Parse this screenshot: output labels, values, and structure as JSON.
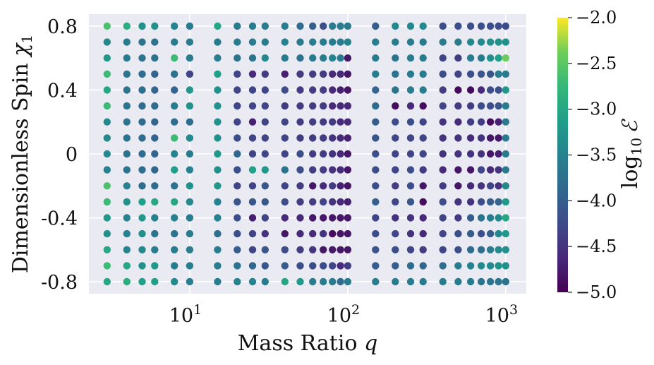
{
  "chart_data": {
    "type": "scatter",
    "xlabel": "Mass Ratio q",
    "ylabel": "Dimensionless Spin χ1",
    "xscale": "log",
    "xlim": [
      2.3,
      1350
    ],
    "ylim": [
      -0.875,
      0.875
    ],
    "x_ticks": [
      {
        "value": 10,
        "base": "10",
        "exp": "1"
      },
      {
        "value": 100,
        "base": "10",
        "exp": "2"
      },
      {
        "value": 1000,
        "base": "10",
        "exp": "3"
      }
    ],
    "y_ticks": [
      {
        "value": 0.8,
        "label": "0.8"
      },
      {
        "value": 0.4,
        "label": "0.4"
      },
      {
        "value": 0.0,
        "label": "0"
      },
      {
        "value": -0.4,
        "label": "-0.4"
      },
      {
        "value": -0.8,
        "label": "-0.8"
      }
    ],
    "colorbar": {
      "label": "log10 ℰ",
      "label_base": "log",
      "label_sub": "10",
      "label_symbol": "ℰ",
      "min": -5.0,
      "max": -2.0,
      "ticks": [
        "−2.0",
        "−2.5",
        "−3.0",
        "−3.5",
        "−4.0",
        "−4.5",
        "−5.0"
      ],
      "colormap": "viridis"
    },
    "q_values": [
      3,
      4,
      5,
      6,
      8,
      10,
      15,
      20,
      25,
      30,
      40,
      50,
      60,
      70,
      80,
      90,
      100,
      150,
      200,
      250,
      300,
      400,
      500,
      600,
      700,
      800,
      900,
      1000
    ],
    "chi_values": [
      0.8,
      0.7,
      0.6,
      0.5,
      0.4,
      0.3,
      0.2,
      0.1,
      0.0,
      -0.1,
      -0.2,
      -0.3,
      -0.4,
      -0.5,
      -0.6,
      -0.7,
      -0.8
    ],
    "log10_error_matrix": [
      [
        -2.6,
        -2.9,
        -3.3,
        -3.3,
        -3.5,
        -3.6,
        -3.0,
        -3.6,
        -3.6,
        -3.6,
        -3.6,
        -3.8,
        -4.0,
        -4.2,
        -3.6,
        -3.6,
        -3.6,
        -4.0,
        -3.4,
        -3.4,
        -3.4,
        -4.2,
        -4.2,
        -4.2,
        -4.2,
        -4.2,
        -4.2,
        -4.2
      ],
      [
        -3.4,
        -3.6,
        -3.7,
        -3.7,
        -3.6,
        -3.6,
        -3.6,
        -3.6,
        -3.6,
        -3.6,
        -3.5,
        -3.6,
        -3.6,
        -3.6,
        -3.6,
        -3.6,
        -3.5,
        -3.6,
        -3.6,
        -3.6,
        -3.6,
        -3.6,
        -3.6,
        -3.4,
        -3.4,
        -3.3,
        -3.3,
        -3.3
      ],
      [
        -3.2,
        -3.6,
        -3.7,
        -3.7,
        -2.7,
        -3.6,
        -3.6,
        -3.7,
        -3.7,
        -3.4,
        -3.6,
        -3.7,
        -3.6,
        -3.6,
        -3.5,
        -3.6,
        -4.8,
        -3.6,
        -3.7,
        -3.6,
        -3.6,
        -4.3,
        -4.4,
        -3.6,
        -3.6,
        -3.3,
        -3.1,
        -2.4
      ],
      [
        -2.7,
        -3.7,
        -3.8,
        -3.9,
        -3.7,
        -4.3,
        -3.1,
        -4.3,
        -4.6,
        -4.4,
        -4.7,
        -4.4,
        -4.4,
        -4.4,
        -4.6,
        -4.6,
        -4.8,
        -3.6,
        -3.7,
        -3.6,
        -3.6,
        -4.2,
        -4.3,
        -4.2,
        -4.1,
        -4.1,
        -3.6,
        -3.6
      ],
      [
        -3.0,
        -3.7,
        -3.8,
        -3.9,
        -3.9,
        -3.2,
        -3.3,
        -4.3,
        -4.3,
        -4.3,
        -4.2,
        -4.4,
        -4.4,
        -4.4,
        -4.6,
        -4.7,
        -4.8,
        -3.9,
        -3.7,
        -3.6,
        -3.6,
        -4.4,
        -4.9,
        -4.9,
        -4.6,
        -4.2,
        -4.2,
        -3.2
      ],
      [
        -2.7,
        -3.7,
        -3.8,
        -3.8,
        -3.6,
        -3.3,
        -3.3,
        -4.3,
        -4.3,
        -4.3,
        -4.4,
        -4.4,
        -4.4,
        -4.4,
        -4.6,
        -4.6,
        -4.6,
        -3.8,
        -4.9,
        -4.6,
        -4.9,
        -4.3,
        -4.4,
        -4.4,
        -4.2,
        -4.2,
        -4.1,
        -3.6
      ],
      [
        -3.4,
        -3.7,
        -3.8,
        -3.9,
        -3.8,
        -3.8,
        -3.3,
        -4.3,
        -4.7,
        -4.3,
        -4.3,
        -4.4,
        -4.4,
        -4.4,
        -4.4,
        -4.6,
        -4.6,
        -4.0,
        -4.2,
        -4.2,
        -4.3,
        -4.5,
        -4.6,
        -4.4,
        -4.4,
        -4.9,
        -4.7,
        -3.6
      ],
      [
        -3.4,
        -3.7,
        -3.8,
        -3.9,
        -2.7,
        -3.4,
        -3.3,
        -4.2,
        -4.3,
        -4.3,
        -4.3,
        -4.4,
        -4.4,
        -4.4,
        -4.5,
        -4.6,
        -4.7,
        -4.1,
        -4.3,
        -4.3,
        -4.3,
        -4.5,
        -4.5,
        -4.6,
        -4.5,
        -4.8,
        -4.8,
        -3.6
      ],
      [
        -3.4,
        -3.7,
        -3.8,
        -3.9,
        -3.5,
        -3.6,
        -3.2,
        -3.9,
        -4.3,
        -4.3,
        -4.3,
        -4.2,
        -4.4,
        -4.4,
        -4.5,
        -4.6,
        -4.8,
        -4.2,
        -4.3,
        -4.3,
        -4.3,
        -4.5,
        -4.5,
        -4.5,
        -4.5,
        -4.8,
        -4.7,
        -3.6
      ],
      [
        -3.5,
        -3.7,
        -3.8,
        -3.9,
        -3.1,
        -3.5,
        -3.3,
        -4.2,
        -3.1,
        -3.2,
        -3.7,
        -4.2,
        -4.4,
        -4.4,
        -4.5,
        -4.6,
        -4.8,
        -4.2,
        -4.3,
        -4.2,
        -4.4,
        -4.6,
        -4.8,
        -4.8,
        -4.3,
        -4.6,
        -4.5,
        -3.6
      ],
      [
        -2.6,
        -3.5,
        -3.8,
        -3.8,
        -3.7,
        -3.3,
        -3.2,
        -4.3,
        -4.3,
        -4.1,
        -4.3,
        -4.4,
        -4.8,
        -4.6,
        -4.4,
        -4.7,
        -4.8,
        -4.2,
        -4.4,
        -4.2,
        -4.8,
        -4.4,
        -4.8,
        -4.6,
        -4.5,
        -4.3,
        -4.5,
        -3.4
      ],
      [
        -2.7,
        -3.3,
        -3.1,
        -3.0,
        -3.0,
        -3.4,
        -3.5,
        -4.1,
        -4.1,
        -4.1,
        -4.2,
        -4.4,
        -4.4,
        -4.3,
        -4.5,
        -4.6,
        -4.7,
        -4.0,
        -4.3,
        -4.1,
        -4.9,
        -4.2,
        -4.5,
        -4.5,
        -4.2,
        -4.0,
        -3.9,
        -3.2
      ],
      [
        -3.2,
        -3.5,
        -3.2,
        -3.5,
        -3.5,
        -3.6,
        -3.5,
        -4.2,
        -4.7,
        -4.3,
        -4.6,
        -4.6,
        -4.8,
        -4.8,
        -4.8,
        -4.8,
        -4.8,
        -4.3,
        -4.5,
        -4.5,
        -4.6,
        -4.3,
        -4.4,
        -4.0,
        -3.7,
        -3.6,
        -3.4,
        -3.0
      ],
      [
        -3.3,
        -3.5,
        -3.3,
        -3.7,
        -3.7,
        -3.6,
        -3.8,
        -4.2,
        -4.3,
        -4.5,
        -4.8,
        -4.6,
        -4.6,
        -4.5,
        -4.9,
        -4.8,
        -4.8,
        -4.2,
        -4.3,
        -4.5,
        -4.6,
        -4.3,
        -4.2,
        -4.0,
        -4.2,
        -4.0,
        -3.4,
        -3.2
      ],
      [
        -3.0,
        -3.5,
        -3.4,
        -3.6,
        -3.6,
        -3.6,
        -3.6,
        -4.0,
        -4.3,
        -4.1,
        -4.2,
        -4.4,
        -4.5,
        -4.8,
        -4.8,
        -4.8,
        -4.8,
        -4.1,
        -4.2,
        -4.3,
        -4.4,
        -4.3,
        -4.2,
        -3.8,
        -3.8,
        -3.6,
        -3.4,
        -3.3
      ],
      [
        -2.7,
        -3.0,
        -3.3,
        -3.2,
        -3.6,
        -3.6,
        -3.6,
        -3.7,
        -3.9,
        -4.1,
        -4.0,
        -4.2,
        -4.2,
        -4.2,
        -4.3,
        -4.6,
        -4.4,
        -4.0,
        -4.0,
        -3.8,
        -3.9,
        -3.8,
        -3.6,
        -3.5,
        -3.4,
        -3.4,
        -3.3,
        -3.3
      ],
      [
        -3.0,
        -2.9,
        -3.1,
        -3.1,
        -3.4,
        -3.6,
        -3.6,
        -3.5,
        -3.5,
        -3.6,
        -3.0,
        -3.2,
        -3.6,
        -3.6,
        -3.6,
        -3.8,
        -3.6,
        -3.6,
        -3.6,
        -3.6,
        -3.6,
        -3.6,
        -3.6,
        -3.6,
        -3.7,
        -3.7,
        -3.7,
        -3.7
      ]
    ]
  }
}
